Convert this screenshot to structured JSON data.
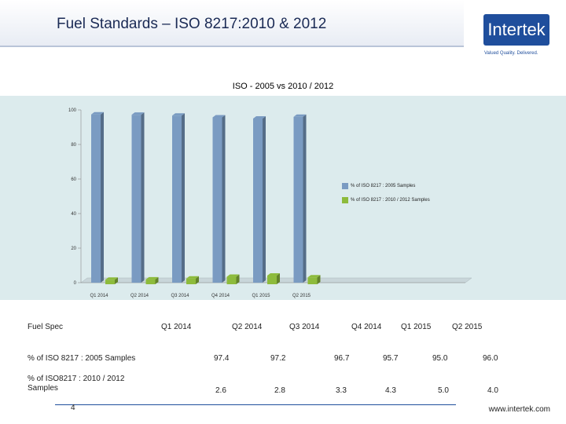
{
  "header": {
    "title": "Fuel Standards – ISO 8217:2010 & 2012",
    "logo_text": "Intertek",
    "tagline": "Valued Quality. Delivered."
  },
  "chart_data": {
    "type": "bar",
    "title": "ISO - 2005 vs 2010 / 2012",
    "categories": [
      "Q1 2014",
      "Q2 2014",
      "Q3 2014",
      "Q4 2014",
      "Q1 2015",
      "Q2 2015"
    ],
    "series": [
      {
        "name": "% of ISO 8217 : 2005 Samples",
        "color": "#7a9bc2",
        "values": [
          97.4,
          97.2,
          96.7,
          95.7,
          95.0,
          96.0
        ]
      },
      {
        "name": "% of ISO 8217 : 2010 / 2012 Samples",
        "color": "#8dbb3c",
        "values": [
          2.6,
          2.8,
          3.3,
          4.3,
          5.0,
          4.0
        ]
      }
    ],
    "yticks": [
      "0",
      "20",
      "40",
      "60",
      "80",
      "100"
    ],
    "ylim": [
      0,
      100
    ],
    "legend_position": "right",
    "grid": false
  },
  "table": {
    "header_label": "Fuel Spec",
    "columns": [
      "Q1 2014",
      "Q2 2014",
      "Q3 2014",
      "Q4 2014",
      "Q1 2015",
      "Q2 2015"
    ],
    "rows": [
      {
        "label": "% of ISO 8217 : 2005 Samples",
        "values": [
          "97.4",
          "97.2",
          "96.7",
          "95.7",
          "95.0",
          "96.0"
        ]
      },
      {
        "label": "% of ISO8217 : 2010 / 2012 Samples",
        "values": [
          "2.6",
          "2.8",
          "3.3",
          "4.3",
          "5.0",
          "4.0"
        ]
      }
    ]
  },
  "footer": {
    "page_number": "4",
    "url": "www.intertek.com"
  }
}
